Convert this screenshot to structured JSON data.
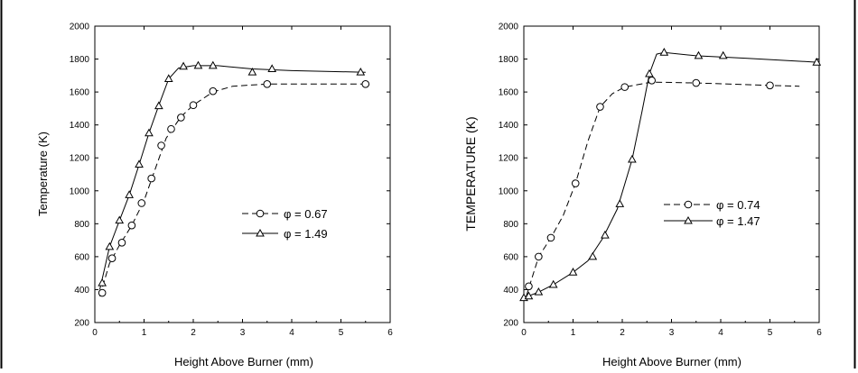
{
  "chart_data": [
    {
      "type": "line",
      "xlabel": "Height Above Burner (mm)",
      "ylabel": "Temperature (K)",
      "xlim": [
        0,
        6
      ],
      "ylim": [
        200,
        2000
      ],
      "xticks": [
        "0",
        "1",
        "2",
        "3",
        "4",
        "5",
        "6"
      ],
      "yticks": [
        "200",
        "400",
        "600",
        "800",
        "1000",
        "1200",
        "1400",
        "1600",
        "1800",
        "2000"
      ],
      "legend_position": "center-right",
      "series": [
        {
          "name": "φ = 0.67",
          "marker": "circle",
          "line_style": "dashed",
          "points": [
            [
              0.15,
              380
            ],
            [
              0.35,
              590
            ],
            [
              0.55,
              685
            ],
            [
              0.75,
              790
            ],
            [
              0.95,
              925
            ],
            [
              1.15,
              1075
            ],
            [
              1.35,
              1275
            ],
            [
              1.55,
              1375
            ],
            [
              1.75,
              1445
            ],
            [
              2.0,
              1520
            ],
            [
              2.4,
              1605
            ],
            [
              3.5,
              1648
            ],
            [
              5.5,
              1648
            ]
          ],
          "curve": [
            [
              0.1,
              360
            ],
            [
              0.3,
              560
            ],
            [
              0.5,
              670
            ],
            [
              0.75,
              790
            ],
            [
              1.0,
              940
            ],
            [
              1.2,
              1110
            ],
            [
              1.45,
              1320
            ],
            [
              1.75,
              1450
            ],
            [
              2.0,
              1520
            ],
            [
              2.4,
              1600
            ],
            [
              2.8,
              1635
            ],
            [
              3.5,
              1648
            ],
            [
              5.5,
              1648
            ]
          ]
        },
        {
          "name": "φ = 1.49",
          "marker": "triangle",
          "line_style": "solid",
          "points": [
            [
              0.15,
              440
            ],
            [
              0.3,
              660
            ],
            [
              0.5,
              820
            ],
            [
              0.7,
              975
            ],
            [
              0.9,
              1160
            ],
            [
              1.1,
              1350
            ],
            [
              1.3,
              1515
            ],
            [
              1.5,
              1680
            ],
            [
              1.8,
              1755
            ],
            [
              2.1,
              1760
            ],
            [
              2.4,
              1760
            ],
            [
              3.2,
              1720
            ],
            [
              3.6,
              1740
            ],
            [
              5.4,
              1720
            ]
          ],
          "curve": [
            [
              0.1,
              400
            ],
            [
              0.3,
              660
            ],
            [
              0.5,
              820
            ],
            [
              0.7,
              975
            ],
            [
              0.9,
              1160
            ],
            [
              1.1,
              1350
            ],
            [
              1.3,
              1520
            ],
            [
              1.5,
              1680
            ],
            [
              1.7,
              1745
            ],
            [
              2.0,
              1760
            ],
            [
              2.5,
              1760
            ],
            [
              3.2,
              1740
            ],
            [
              4.0,
              1730
            ],
            [
              5.5,
              1720
            ]
          ]
        }
      ]
    },
    {
      "type": "line",
      "xlabel": "Height Above Burner (mm)",
      "ylabel": "TEMPERATURE (K)",
      "xlim": [
        0,
        6
      ],
      "ylim": [
        200,
        2000
      ],
      "xticks": [
        "0",
        "1",
        "2",
        "3",
        "4",
        "5",
        "6"
      ],
      "yticks": [
        "200",
        "400",
        "600",
        "800",
        "1000",
        "1200",
        "1400",
        "1600",
        "1800",
        "2000"
      ],
      "legend_position": "center-right",
      "series": [
        {
          "name": "φ = 0.74",
          "marker": "circle",
          "line_style": "dashed",
          "points": [
            [
              0.1,
              420
            ],
            [
              0.3,
              600
            ],
            [
              0.55,
              715
            ],
            [
              1.05,
              1045
            ],
            [
              1.55,
              1510
            ],
            [
              2.05,
              1630
            ],
            [
              2.6,
              1670
            ],
            [
              3.5,
              1655
            ],
            [
              5.0,
              1640
            ]
          ],
          "curve": [
            [
              0.05,
              360
            ],
            [
              0.3,
              600
            ],
            [
              0.55,
              715
            ],
            [
              0.8,
              850
            ],
            [
              1.05,
              1045
            ],
            [
              1.3,
              1300
            ],
            [
              1.55,
              1510
            ],
            [
              1.8,
              1590
            ],
            [
              2.05,
              1630
            ],
            [
              2.6,
              1660
            ],
            [
              3.5,
              1655
            ],
            [
              5.0,
              1640
            ],
            [
              5.6,
              1635
            ]
          ]
        },
        {
          "name": "φ = 1.47",
          "marker": "triangle",
          "line_style": "solid",
          "points": [
            [
              0.0,
              350
            ],
            [
              0.1,
              360
            ],
            [
              0.3,
              385
            ],
            [
              0.6,
              430
            ],
            [
              1.0,
              505
            ],
            [
              1.4,
              600
            ],
            [
              1.65,
              730
            ],
            [
              1.95,
              920
            ],
            [
              2.2,
              1190
            ],
            [
              2.55,
              1710
            ],
            [
              2.85,
              1840
            ],
            [
              3.55,
              1820
            ],
            [
              4.05,
              1820
            ],
            [
              5.95,
              1780
            ]
          ],
          "curve": [
            [
              0.0,
              350
            ],
            [
              0.3,
              385
            ],
            [
              0.6,
              430
            ],
            [
              1.0,
              505
            ],
            [
              1.3,
              575
            ],
            [
              1.6,
              710
            ],
            [
              1.9,
              890
            ],
            [
              2.2,
              1190
            ],
            [
              2.4,
              1480
            ],
            [
              2.55,
              1710
            ],
            [
              2.7,
              1830
            ],
            [
              2.85,
              1840
            ],
            [
              3.5,
              1820
            ],
            [
              4.5,
              1805
            ],
            [
              6.0,
              1780
            ]
          ]
        }
      ]
    }
  ]
}
